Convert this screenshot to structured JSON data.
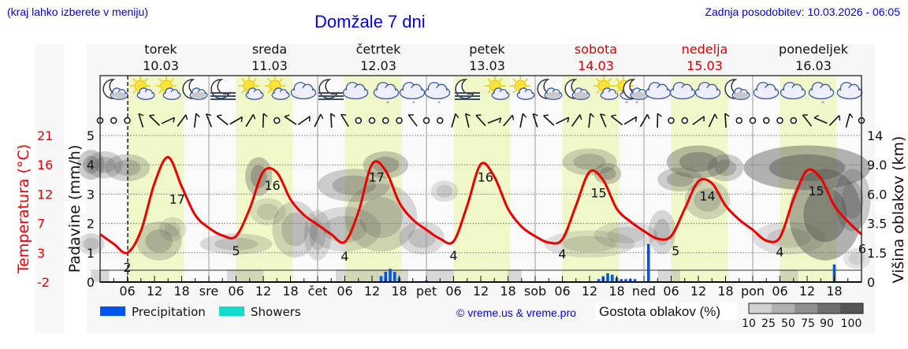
{
  "header": {
    "hint": "(kraj lahko izberete v meniju)",
    "title": "Domžale 7 dni",
    "updated": "Zadnja posodobitev: 10.03.2026 - 06:05"
  },
  "colors": {
    "header_text": "#0000ee",
    "temperature": "#ee0000",
    "weekend": "#dd0000",
    "precipitation": "#0055ee",
    "showers": "#11ddcc",
    "daytime_band": "#f0f7c8",
    "night_band": "#fafafa"
  },
  "days": [
    {
      "name": "torek",
      "date": "10.03",
      "weekend": false,
      "abbr": ""
    },
    {
      "name": "sreda",
      "date": "11.03",
      "weekend": false,
      "abbr": "sre"
    },
    {
      "name": "četrtek",
      "date": "12.03",
      "weekend": false,
      "abbr": "čet"
    },
    {
      "name": "petek",
      "date": "13.03",
      "weekend": false,
      "abbr": "pet"
    },
    {
      "name": "sobota",
      "date": "14.03",
      "weekend": true,
      "abbr": "sob"
    },
    {
      "name": "nedelja",
      "date": "15.03",
      "weekend": true,
      "abbr": "ned"
    },
    {
      "name": "ponedeljek",
      "date": "16.03",
      "weekend": false,
      "abbr": "pon"
    }
  ],
  "legend": {
    "precipitation": "Precipitation",
    "showers": "Showers",
    "copyright": "© vreme.us & vreme.pro",
    "cloud_density_title": "Gostota oblakov (%)",
    "cloud_density_ticks": [
      "10",
      "25",
      "50",
      "75",
      "90",
      "100"
    ],
    "cloud_density_colors": [
      "#d0d0d0",
      "#b0b0b0",
      "#909090",
      "#707070",
      "#555555"
    ]
  },
  "chart_data": {
    "type": "line",
    "title": "Domžale 7 dni",
    "xlabel": "",
    "ylabel_left_outer": "Temperatura (°C)",
    "ylabel_left": "Padavine (mm/h)",
    "ylabel_right": "Višina oblakov (km)",
    "temperature_ticks": [
      "21",
      "16",
      "12",
      "7",
      "3",
      "-2"
    ],
    "precip_ticks": [
      "5",
      "4",
      "3",
      "2",
      "1",
      "0"
    ],
    "cloud_height_ticks": [
      "14",
      "9.0",
      "6.0",
      "3.5",
      "1.5",
      "0"
    ],
    "x_tick_labels": [
      "06",
      "12",
      "18",
      "sre",
      "06",
      "12",
      "18",
      "čet",
      "06",
      "12",
      "18",
      "pet",
      "06",
      "12",
      "18",
      "sob",
      "06",
      "12",
      "18",
      "ned",
      "06",
      "12",
      "18",
      "pon",
      "06",
      "12",
      "18"
    ],
    "ylim_precip": [
      0,
      5
    ],
    "ylim_temperature": [
      -2,
      21
    ],
    "grid": true,
    "current_time_marker": "10.03 06:05",
    "series": [
      {
        "name": "Temperatura",
        "unit": "°C",
        "hours": [
          0,
          3,
          6,
          9,
          12,
          15,
          18,
          21,
          24,
          27,
          30,
          33,
          36,
          39,
          42,
          45,
          48,
          51,
          54,
          57,
          60,
          63,
          66,
          69,
          72,
          75,
          78,
          81,
          84,
          87,
          90,
          93,
          96,
          99,
          102,
          105,
          108,
          111,
          114,
          117,
          120,
          123,
          126,
          129,
          132,
          135,
          138,
          141,
          144,
          147,
          150,
          153,
          156,
          159,
          162,
          165,
          168
        ],
        "values": [
          5.5,
          4,
          2.6,
          6,
          13.5,
          17.6,
          13,
          8.5,
          6.5,
          5.3,
          5.2,
          9.5,
          15.3,
          15.2,
          11,
          8.5,
          7,
          5.5,
          4.3,
          9,
          16.5,
          15.5,
          10.5,
          7.8,
          6.2,
          4.8,
          4.4,
          10,
          16.5,
          14.5,
          9.5,
          6.7,
          5.2,
          4.2,
          4.7,
          10,
          15.3,
          14,
          9.5,
          7.5,
          6,
          4.8,
          5.2,
          9.5,
          13.8,
          13.5,
          10,
          7.8,
          6.2,
          4.5,
          5,
          11,
          15.5,
          14.3,
          10,
          7.5,
          5.5
        ],
        "labels": [
          {
            "hour": 6,
            "text": "2"
          },
          {
            "hour": 17,
            "text": "17"
          },
          {
            "hour": 30,
            "text": "5"
          },
          {
            "hour": 38,
            "text": "16"
          },
          {
            "hour": 54,
            "text": "4"
          },
          {
            "hour": 61,
            "text": "17"
          },
          {
            "hour": 78,
            "text": "4"
          },
          {
            "hour": 85,
            "text": "16"
          },
          {
            "hour": 102,
            "text": "4"
          },
          {
            "hour": 110,
            "text": "15"
          },
          {
            "hour": 127,
            "text": "5"
          },
          {
            "hour": 134,
            "text": "14"
          },
          {
            "hour": 150,
            "text": "4"
          },
          {
            "hour": 158,
            "text": "15"
          },
          {
            "hour": 168,
            "text": "6"
          }
        ]
      },
      {
        "name": "Precipitation",
        "unit": "mm/h",
        "bars": [
          {
            "hour": 62,
            "value": 0.2
          },
          {
            "hour": 63,
            "value": 0.35
          },
          {
            "hour": 64,
            "value": 0.45
          },
          {
            "hour": 65,
            "value": 0.35
          },
          {
            "hour": 66,
            "value": 0.15
          },
          {
            "hour": 72,
            "value": 0.05
          },
          {
            "hour": 110,
            "value": 0.1
          },
          {
            "hour": 111,
            "value": 0.2
          },
          {
            "hour": 112,
            "value": 0.3
          },
          {
            "hour": 113,
            "value": 0.25
          },
          {
            "hour": 114,
            "value": 0.15
          },
          {
            "hour": 115,
            "value": 0.1
          },
          {
            "hour": 116,
            "value": 0.1
          },
          {
            "hour": 117,
            "value": 0.1
          },
          {
            "hour": 118,
            "value": 0.1
          },
          {
            "hour": 121,
            "value": 1.3
          },
          {
            "hour": 162,
            "value": 0.6
          }
        ]
      },
      {
        "name": "Showers",
        "unit": "mm/h",
        "bars": []
      }
    ],
    "wind_calm_hours": [
      0,
      3,
      6,
      39,
      57,
      60,
      63,
      66,
      72,
      75,
      126,
      129,
      141,
      144,
      147,
      150,
      153,
      168
    ]
  }
}
